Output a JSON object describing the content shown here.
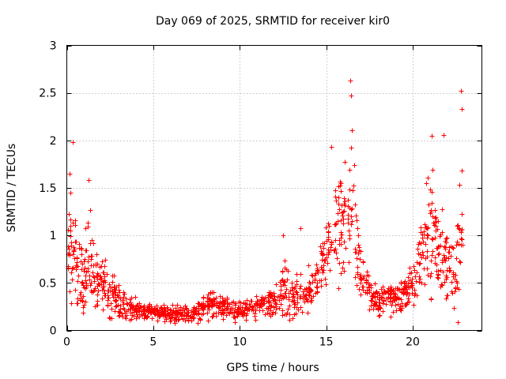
{
  "chart_data": {
    "type": "scatter",
    "title": "Day 069 of 2025, SRMTID for receiver kir0",
    "xlabel": "GPS time / hours",
    "ylabel": "SRMTID / TECUs",
    "xlim": [
      0,
      24
    ],
    "ylim": [
      0,
      3
    ],
    "xticks": [
      0,
      5,
      10,
      15,
      20
    ],
    "xtick_labels": [
      "0",
      "5",
      "10",
      "15",
      "20"
    ],
    "yticks": [
      0,
      0.5,
      1,
      1.5,
      2,
      2.5,
      3
    ],
    "ytick_labels": [
      "0",
      "0.5",
      "1",
      "1.5",
      "2",
      "2.5",
      "3"
    ],
    "grid": true,
    "marker": "+",
    "color": "#ff0000",
    "series": [
      {
        "name": "SRMTID",
        "profile_description": "Estimated envelope of scattered SRMTID values (hour, typical value, spread)",
        "profile": [
          [
            0.0,
            0.75,
            0.35
          ],
          [
            0.2,
            0.95,
            0.6
          ],
          [
            0.4,
            0.9,
            0.55
          ],
          [
            0.6,
            0.6,
            0.4
          ],
          [
            1.0,
            0.55,
            0.35
          ],
          [
            1.3,
            0.7,
            0.45
          ],
          [
            1.6,
            0.55,
            0.3
          ],
          [
            2.0,
            0.55,
            0.3
          ],
          [
            2.5,
            0.4,
            0.25
          ],
          [
            3.0,
            0.3,
            0.2
          ],
          [
            3.5,
            0.25,
            0.12
          ],
          [
            4.0,
            0.22,
            0.1
          ],
          [
            5.0,
            0.2,
            0.08
          ],
          [
            6.0,
            0.18,
            0.08
          ],
          [
            7.0,
            0.17,
            0.08
          ],
          [
            7.5,
            0.2,
            0.1
          ],
          [
            8.0,
            0.24,
            0.12
          ],
          [
            8.5,
            0.3,
            0.15
          ],
          [
            9.0,
            0.25,
            0.12
          ],
          [
            10.0,
            0.2,
            0.1
          ],
          [
            11.0,
            0.27,
            0.12
          ],
          [
            12.0,
            0.3,
            0.15
          ],
          [
            12.5,
            0.45,
            0.3
          ],
          [
            13.0,
            0.35,
            0.2
          ],
          [
            13.5,
            0.35,
            0.2
          ],
          [
            14.0,
            0.45,
            0.2
          ],
          [
            14.5,
            0.55,
            0.25
          ],
          [
            15.0,
            0.85,
            0.35
          ],
          [
            15.5,
            1.1,
            0.45
          ],
          [
            16.0,
            1.05,
            0.5
          ],
          [
            16.5,
            1.2,
            0.7
          ],
          [
            17.0,
            0.5,
            0.25
          ],
          [
            17.5,
            0.4,
            0.2
          ],
          [
            18.0,
            0.3,
            0.15
          ],
          [
            19.0,
            0.35,
            0.15
          ],
          [
            20.0,
            0.45,
            0.2
          ],
          [
            20.5,
            0.9,
            0.45
          ],
          [
            21.0,
            1.1,
            0.6
          ],
          [
            21.5,
            0.9,
            0.5
          ],
          [
            22.0,
            0.7,
            0.45
          ],
          [
            22.5,
            0.6,
            0.4
          ],
          [
            22.9,
            1.3,
            0.9
          ]
        ],
        "x_extent": [
          0.0,
          22.9
        ],
        "peaks": [
          {
            "x": 0.35,
            "y": 1.98
          },
          {
            "x": 0.15,
            "y": 1.65
          },
          {
            "x": 1.25,
            "y": 1.58
          },
          {
            "x": 12.5,
            "y": 1.0
          },
          {
            "x": 13.5,
            "y": 1.08
          },
          {
            "x": 15.3,
            "y": 1.93
          },
          {
            "x": 16.4,
            "y": 2.63
          },
          {
            "x": 16.45,
            "y": 2.47
          },
          {
            "x": 16.5,
            "y": 2.11
          },
          {
            "x": 21.1,
            "y": 2.05
          },
          {
            "x": 21.8,
            "y": 2.06
          },
          {
            "x": 22.8,
            "y": 2.52
          },
          {
            "x": 22.85,
            "y": 2.33
          },
          {
            "x": 22.6,
            "y": 0.09
          }
        ],
        "point_count_approx": 1400
      }
    ]
  }
}
